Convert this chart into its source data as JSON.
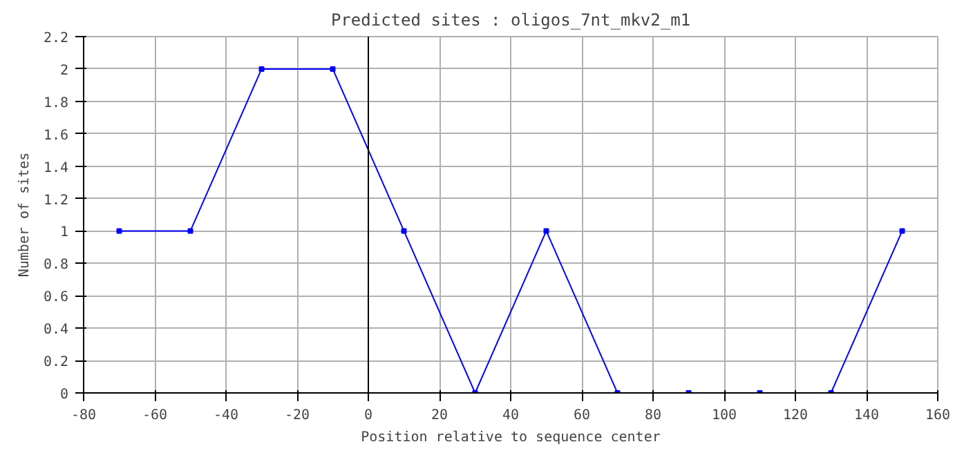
{
  "chart_data": {
    "type": "line",
    "title": "Predicted sites : oligos_7nt_mkv2_m1",
    "xlabel": "Position relative to sequence center",
    "ylabel": "Number of sites",
    "x": [
      -70,
      -50,
      -30,
      -10,
      10,
      30,
      50,
      70,
      90,
      110,
      130,
      150
    ],
    "series": [
      {
        "color": "#0000ff",
        "values": [
          1,
          1,
          2,
          2,
          1,
          0,
          1,
          0,
          0,
          0,
          0,
          1
        ]
      }
    ],
    "xlim": [
      -80,
      160
    ],
    "xticks": [
      -80,
      -60,
      -40,
      -20,
      0,
      20,
      40,
      60,
      80,
      100,
      120,
      140,
      160
    ],
    "ylim": [
      0,
      2.2
    ],
    "yticks": [
      0,
      0.2,
      0.4,
      0.6,
      0.8,
      1,
      1.2,
      1.4,
      1.6,
      1.8,
      2,
      2.2
    ],
    "ref_lines": [
      {
        "axis": "x",
        "value": 0,
        "color": "#000000"
      }
    ],
    "grid": true,
    "marker": "square",
    "line_style": "solid"
  }
}
